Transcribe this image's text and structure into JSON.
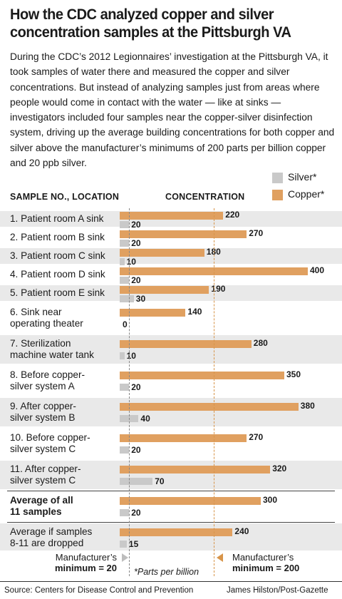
{
  "title": "How the CDC analyzed copper and silver concentration samples at the Pittsburgh VA",
  "intro": "During the CDC’s 2012 Legionnaires’ investigation at the Pittsburgh VA, it took samples of water there and measured the copper and silver concentrations. But instead of analyzing samples just from areas where people would come in contact with the water — like at sinks — investigators included four samples near the copper-silver disinfection system, driving up the average building concentrations for both copper and silver above the manufacturer’s minimums of 200 parts per billion copper and 20 ppb silver.",
  "legend": {
    "silver": "Silver*",
    "copper": "Copper*"
  },
  "headers": {
    "sample": "SAMPLE NO., LOCATION",
    "concentration": "CONCENTRATION"
  },
  "colors": {
    "copper": "#e0a060",
    "silver": "#c9c9c9",
    "row_shade": "#e9e9e9"
  },
  "chart_data": {
    "type": "bar",
    "orientation": "horizontal",
    "unit": "*Parts per billion",
    "categories": [
      "1. Patient room A sink",
      "2. Patient room B sink",
      "3. Patient room C sink",
      "4. Patient room D sink",
      "5. Patient room E sink",
      "6. Sink near operating theater",
      "7. Sterilization machine water tank",
      "8. Before copper-silver system A",
      "9. After copper-silver system B",
      "10. Before copper-silver system C",
      "11. After copper-silver system C",
      "Average of all 11 samples",
      "Average if samples 8-11 are dropped"
    ],
    "series": [
      {
        "name": "Copper*",
        "values": [
          220,
          270,
          180,
          400,
          190,
          140,
          280,
          350,
          380,
          270,
          320,
          300,
          240
        ]
      },
      {
        "name": "Silver*",
        "values": [
          20,
          20,
          10,
          20,
          30,
          0,
          10,
          20,
          40,
          20,
          70,
          20,
          15
        ]
      }
    ],
    "xlim": [
      0,
      400
    ],
    "reference_lines": [
      {
        "label": "Manufacturer’s minimum = 20",
        "value": 20,
        "series": "Silver*"
      },
      {
        "label": "Manufacturer’s minimum = 200",
        "value": 200,
        "series": "Copper*"
      }
    ]
  },
  "rows": [
    {
      "lines": [
        "1. Patient room A sink"
      ],
      "bold": false
    },
    {
      "lines": [
        "2. Patient room B sink"
      ],
      "bold": false
    },
    {
      "lines": [
        "3. Patient room C sink"
      ],
      "bold": false
    },
    {
      "lines": [
        "4. Patient room D sink"
      ],
      "bold": false
    },
    {
      "lines": [
        "5. Patient room E sink"
      ],
      "bold": false
    },
    {
      "lines": [
        "6. Sink near",
        "operating theater"
      ],
      "bold": false
    },
    {
      "lines": [
        "7. Sterilization",
        "machine water tank"
      ],
      "bold": false
    },
    {
      "lines": [
        "8. Before copper-",
        "silver system A"
      ],
      "bold": false
    },
    {
      "lines": [
        "9. After copper-",
        "silver system B"
      ],
      "bold": false
    },
    {
      "lines": [
        "10. Before copper-",
        "silver system C"
      ],
      "bold": false
    },
    {
      "lines": [
        "11. After copper-",
        "silver system C"
      ],
      "bold": false
    },
    {
      "lines": [
        "Average of all",
        "11 samples"
      ],
      "bold": true
    },
    {
      "lines": [
        "Average if samples",
        "8-11 are dropped"
      ],
      "bold": false
    }
  ],
  "footer": {
    "silver_min_lines": [
      "Manufacturer’s",
      "minimum = 20"
    ],
    "copper_min_lines": [
      "Manufacturer’s",
      "minimum = 200"
    ],
    "note": "*Parts per billion",
    "source": "Source: Centers for Disease Control and Prevention",
    "credit": "James Hilston/Post-Gazette"
  }
}
